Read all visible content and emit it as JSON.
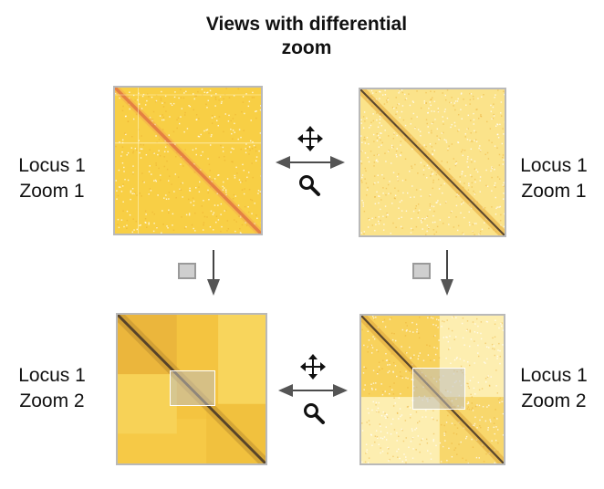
{
  "title_line1": "Views with differential",
  "title_line2": "zoom",
  "labels": {
    "top_left": {
      "locus": "Locus 1",
      "zoom": "Zoom 1"
    },
    "top_right": {
      "locus": "Locus 1",
      "zoom": "Zoom 1"
    },
    "bottom_left": {
      "locus": "Locus 1",
      "zoom": "Zoom 2"
    },
    "bottom_right": {
      "locus": "Locus 1",
      "zoom": "Zoom 2"
    }
  },
  "icons": {
    "pan": "move-arrows-icon",
    "link": "double-arrow-icon",
    "zoom": "magnifier-icon",
    "sync": "square-icon",
    "flow": "arrow-down-icon"
  },
  "colors": {
    "map_background": "#f7c93a",
    "map_light": "#fbe79a",
    "diagonal_red": "#d9643a",
    "diagonal_dark": "#4a3a28",
    "frame": "#b9b9b9"
  }
}
